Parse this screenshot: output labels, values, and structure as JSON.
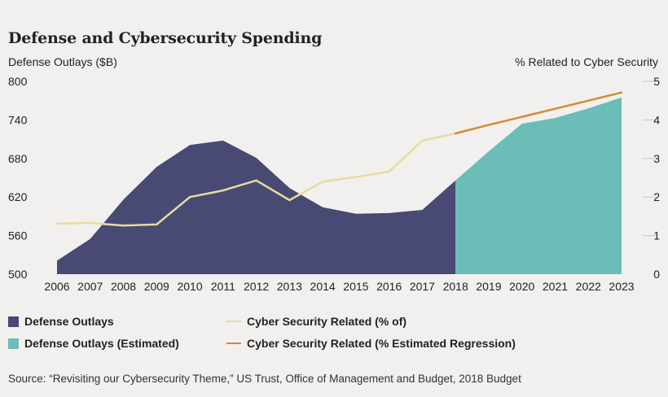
{
  "title": "Defense and Cybersecurity Spending",
  "source": "Source: “Revisiting our Cybersecurity Theme,” US Trust, Office of Management and Budget, 2018 Budget",
  "colors": {
    "defense": "#484a74",
    "defense_est": "#6bbdb7",
    "cyber": "#e8dc9c",
    "cyber_est": "#d68a2e",
    "grid": "#c9c9c9"
  },
  "chart_data": {
    "type": "area",
    "title": "Defense and Cybersecurity Spending",
    "ylabel_left": "Defense Outlays ($B)",
    "ylabel_right": "% Related to Cyber Security",
    "ylim_left": [
      500,
      800
    ],
    "ylim_right": [
      0,
      5
    ],
    "yticks_left": [
      "800",
      "740",
      "680",
      "620",
      "560",
      "500"
    ],
    "yticks_right": [
      "5",
      "4",
      "3",
      "2",
      "1",
      "0"
    ],
    "x": [
      "2006",
      "2007",
      "2008",
      "2009",
      "2010",
      "2011",
      "2012",
      "2013",
      "2014",
      "2015",
      "2016",
      "2017",
      "2018",
      "2019",
      "2020",
      "2021",
      "2022",
      "2023"
    ],
    "grid": true,
    "legend_position": "bottom",
    "series": [
      {
        "name": "Defense Outlays",
        "axis": "left",
        "kind": "area",
        "x": [
          "2006",
          "2007",
          "2008",
          "2009",
          "2010",
          "2011",
          "2012",
          "2013",
          "2014",
          "2015",
          "2016",
          "2017",
          "2018"
        ],
        "values": [
          521,
          555,
          616,
          667,
          701,
          708,
          681,
          634,
          604,
          594,
          595,
          600,
          646
        ]
      },
      {
        "name": "Defense Outlays (Estimated)",
        "axis": "left",
        "kind": "area",
        "x": [
          "2018",
          "2019",
          "2020",
          "2021",
          "2022",
          "2023"
        ],
        "values": [
          646,
          691,
          734,
          743,
          758,
          775
        ]
      },
      {
        "name": "Cyber Security Related (% of)",
        "axis": "right",
        "kind": "line",
        "x": [
          "2006",
          "2007",
          "2008",
          "2009",
          "2010",
          "2011",
          "2012",
          "2013",
          "2014",
          "2015",
          "2016",
          "2017",
          "2018"
        ],
        "values": [
          1.31,
          1.33,
          1.26,
          1.29,
          2.0,
          2.17,
          2.43,
          1.92,
          2.4,
          2.52,
          2.66,
          3.46,
          3.65
        ]
      },
      {
        "name": "Cyber Security Related (% Estimated Regression)",
        "axis": "right",
        "kind": "line",
        "x": [
          "2018",
          "2019",
          "2020",
          "2021",
          "2022",
          "2023"
        ],
        "values": [
          3.65,
          3.87,
          4.08,
          4.29,
          4.5,
          4.71
        ]
      }
    ]
  }
}
